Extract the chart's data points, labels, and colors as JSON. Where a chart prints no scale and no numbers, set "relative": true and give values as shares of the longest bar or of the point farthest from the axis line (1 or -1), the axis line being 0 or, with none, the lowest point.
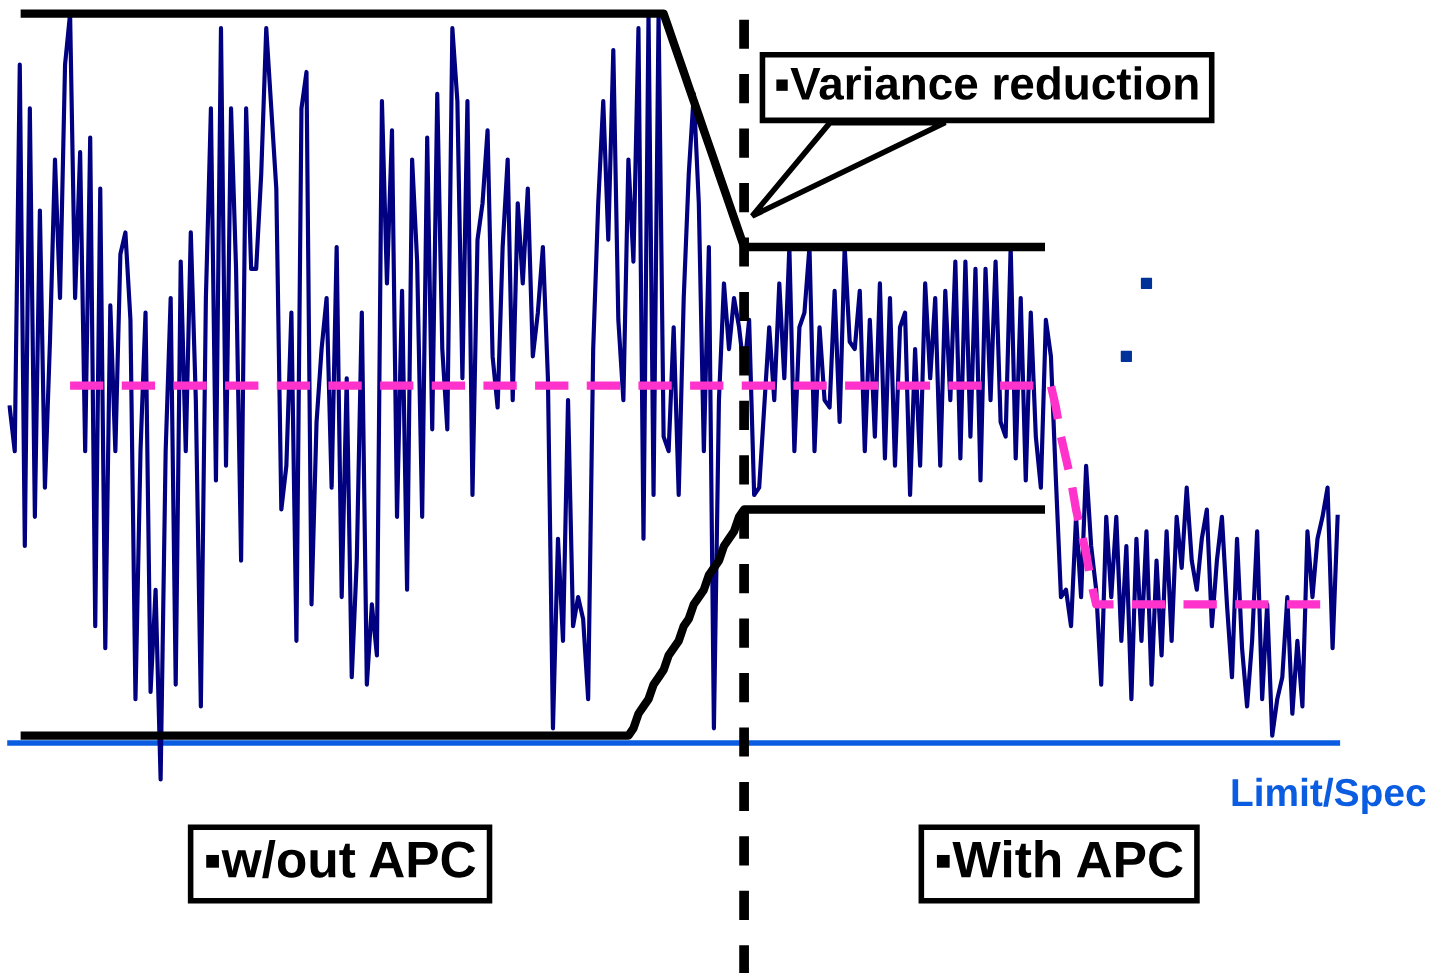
{
  "chart_data": {
    "type": "line",
    "relative": true,
    "legend": false,
    "marker": "none",
    "categories": [
      null,
      null,
      null,
      null,
      null,
      null,
      null,
      null,
      null,
      null,
      null,
      null,
      null,
      null,
      null,
      null,
      null,
      null,
      null,
      null,
      null,
      null,
      null,
      null,
      null,
      null,
      null,
      null,
      null,
      null,
      null,
      null,
      null,
      null,
      null,
      null,
      null,
      null,
      null,
      null,
      null,
      null,
      null,
      null,
      null,
      null,
      null,
      null,
      null,
      null,
      null,
      null,
      null,
      null,
      null,
      null,
      null,
      null,
      null,
      null,
      null,
      null,
      null,
      null,
      null,
      null,
      null,
      null,
      null,
      null,
      null,
      null,
      null,
      null,
      null,
      null,
      null,
      null,
      null,
      null,
      null,
      null,
      null,
      null,
      null,
      null,
      null,
      null,
      null,
      null,
      null,
      null,
      null,
      null,
      null,
      null,
      null,
      null,
      null,
      null,
      null,
      null,
      null,
      null,
      null,
      null,
      null,
      null,
      null,
      null,
      null,
      null,
      null,
      null,
      null,
      null,
      null,
      null,
      null,
      null,
      null,
      null,
      null,
      null,
      null,
      null,
      null,
      null,
      null,
      null,
      null,
      null,
      null,
      null,
      null,
      null,
      null,
      null,
      null,
      null,
      null,
      null,
      null,
      null,
      null,
      null,
      null,
      null,
      null,
      null,
      null,
      null,
      null,
      null,
      null,
      null,
      null,
      null,
      null,
      null,
      null,
      null,
      null,
      null,
      null,
      null,
      null,
      null,
      null,
      null,
      null,
      null,
      null,
      null,
      null,
      null,
      null,
      null,
      null,
      null,
      null,
      null,
      null,
      null,
      null,
      null,
      null,
      null,
      null,
      null,
      null,
      null,
      null,
      null,
      null,
      null,
      null,
      null,
      null,
      null,
      null,
      null,
      null,
      null,
      null,
      null,
      null,
      null,
      null,
      null,
      null,
      null,
      null,
      null,
      null,
      null,
      null,
      null,
      null,
      null,
      null,
      null,
      null,
      null,
      null,
      null,
      null,
      null,
      null,
      null,
      null,
      null,
      null,
      null,
      null,
      null,
      null,
      null,
      null,
      null,
      null,
      null,
      null,
      null,
      null,
      null,
      null,
      null,
      null,
      null,
      null,
      null,
      null,
      null,
      null,
      null,
      null,
      null,
      null,
      null,
      null,
      null,
      null,
      null,
      null
    ],
    "series": [
      {
        "color": "#000080",
        "values": [
          0.46,
          0.4,
          0.93,
          0.27,
          0.87,
          0.31,
          0.73,
          0.35,
          0.55,
          0.8,
          0.61,
          0.93,
          1.0,
          0.61,
          0.81,
          0.4,
          0.83,
          0.16,
          0.76,
          0.13,
          0.6,
          0.4,
          0.67,
          0.7,
          0.58,
          0.06,
          0.4,
          0.59,
          0.07,
          0.21,
          -0.05,
          0.4,
          0.61,
          0.08,
          0.66,
          0.4,
          0.7,
          0.47,
          0.05,
          0.61,
          0.87,
          0.36,
          0.98,
          0.38,
          0.87,
          0.65,
          0.25,
          0.87,
          0.65,
          0.65,
          0.78,
          0.98,
          0.87,
          0.76,
          0.32,
          0.38,
          0.59,
          0.14,
          0.87,
          0.92,
          0.19,
          0.44,
          0.54,
          0.61,
          0.35,
          0.68,
          0.2,
          0.5,
          0.09,
          0.25,
          0.59,
          0.08,
          0.19,
          0.12,
          0.88,
          0.63,
          0.84,
          0.31,
          0.62,
          0.21,
          0.8,
          0.66,
          0.31,
          0.83,
          0.43,
          0.89,
          0.54,
          0.43,
          0.98,
          0.88,
          0.5,
          0.88,
          0.34,
          0.69,
          0.74,
          0.84,
          0.53,
          0.46,
          0.68,
          0.8,
          0.47,
          0.74,
          0.63,
          0.76,
          0.53,
          0.59,
          0.68,
          0.5,
          0.02,
          0.28,
          0.14,
          0.47,
          0.16,
          0.2,
          0.17,
          0.06,
          0.54,
          0.74,
          0.88,
          0.69,
          0.95,
          0.58,
          0.47,
          0.8,
          0.66,
          0.98,
          0.28,
          1.0,
          0.34,
          1.0,
          0.42,
          0.4,
          0.57,
          0.34,
          0.61,
          0.78,
          0.89,
          0.74,
          0.4,
          0.68,
          0.02,
          0.47,
          0.63,
          0.54,
          0.61,
          0.57,
          0.51,
          0.58,
          0.34,
          0.35,
          0.46,
          0.57,
          0.47,
          0.63,
          0.5,
          0.68,
          0.4,
          0.57,
          0.59,
          0.68,
          0.4,
          0.57,
          0.47,
          0.46,
          0.62,
          0.44,
          0.68,
          0.55,
          0.54,
          0.62,
          0.4,
          0.58,
          0.42,
          0.63,
          0.39,
          0.61,
          0.38,
          0.57,
          0.59,
          0.34,
          0.54,
          0.38,
          0.63,
          0.5,
          0.61,
          0.38,
          0.62,
          0.47,
          0.66,
          0.39,
          0.66,
          0.42,
          0.65,
          0.36,
          0.65,
          0.47,
          0.66,
          0.44,
          0.42,
          0.68,
          0.39,
          0.61,
          0.36,
          0.59,
          0.42,
          0.35,
          0.58,
          0.53,
          0.36,
          0.2,
          0.21,
          0.16,
          0.31,
          0.2,
          0.38,
          0.27,
          0.21,
          0.08,
          0.31,
          0.2,
          0.31,
          0.14,
          0.27,
          0.06,
          0.28,
          0.14,
          0.29,
          0.08,
          0.25,
          0.12,
          0.29,
          0.14,
          0.31,
          0.24,
          0.35,
          0.25,
          0.21,
          0.28,
          0.32,
          0.16,
          0.25,
          0.31,
          0.19,
          0.09,
          0.28,
          0.13,
          0.05,
          0.14,
          0.29,
          0.06,
          0.19,
          0.01,
          0.06,
          0.09,
          0.2,
          0.04,
          0.14,
          0.05,
          0.29,
          0.2,
          0.28,
          0.31,
          0.35,
          0.13,
          0.31
        ]
      },
      {
        "color": "#ff33cc",
        "line_style": "dashed",
        "values": [
          null,
          null,
          null,
          null,
          null,
          null,
          null,
          null,
          null,
          null,
          null,
          null,
          0.49,
          0.49,
          0.49,
          0.49,
          0.49,
          0.49,
          0.49,
          0.49,
          0.49,
          0.49,
          0.49,
          0.49,
          0.49,
          0.49,
          0.49,
          0.49,
          0.49,
          0.49,
          0.49,
          0.49,
          0.49,
          0.49,
          0.49,
          0.49,
          0.49,
          0.49,
          0.49,
          0.49,
          0.49,
          0.49,
          0.49,
          0.49,
          0.49,
          0.49,
          0.49,
          0.49,
          0.49,
          0.49,
          0.49,
          0.49,
          0.49,
          0.49,
          0.49,
          0.49,
          0.49,
          0.49,
          0.49,
          0.49,
          0.49,
          0.49,
          0.49,
          0.49,
          0.49,
          0.49,
          0.49,
          0.49,
          0.49,
          0.49,
          0.49,
          0.49,
          0.49,
          0.49,
          0.49,
          0.49,
          0.49,
          0.49,
          0.49,
          0.49,
          0.49,
          0.49,
          0.49,
          0.49,
          0.49,
          0.49,
          0.49,
          0.49,
          0.49,
          0.49,
          0.49,
          0.49,
          0.49,
          0.49,
          0.49,
          0.49,
          0.49,
          0.49,
          0.49,
          0.49,
          0.49,
          0.49,
          0.49,
          0.49,
          0.49,
          0.49,
          0.49,
          0.49,
          0.49,
          0.49,
          0.49,
          0.49,
          0.49,
          0.49,
          0.49,
          0.49,
          0.49,
          0.49,
          0.49,
          0.49,
          0.49,
          0.49,
          0.49,
          0.49,
          0.49,
          0.49,
          0.49,
          0.49,
          0.49,
          0.49,
          0.49,
          0.49,
          0.49,
          0.49,
          0.49,
          0.49,
          0.49,
          0.49,
          0.49,
          0.49,
          0.49,
          0.49,
          0.49,
          0.49,
          0.49,
          0.49,
          0.49,
          0.49,
          0.49,
          0.49,
          0.49,
          0.49,
          0.49,
          0.49,
          0.49,
          0.49,
          0.49,
          0.49,
          0.49,
          0.49,
          0.49,
          0.49,
          0.49,
          0.49,
          0.49,
          0.49,
          0.49,
          0.49,
          0.49,
          0.49,
          0.49,
          0.49,
          0.49,
          0.49,
          0.49,
          0.49,
          0.49,
          0.49,
          0.49,
          0.49,
          0.49,
          0.49,
          0.49,
          0.49,
          0.49,
          0.49,
          0.49,
          0.49,
          0.49,
          0.49,
          0.49,
          0.49,
          0.49,
          0.49,
          0.49,
          0.49,
          0.49,
          0.49,
          0.49,
          0.49,
          0.49,
          0.49,
          0.49,
          0.49,
          0.49,
          0.49,
          0.49,
          0.49,
          0.46,
          0.42,
          0.39,
          0.36,
          0.32,
          0.29,
          0.26,
          0.22,
          0.19,
          0.19,
          0.19,
          0.19,
          0.19,
          0.19,
          0.19,
          0.19,
          0.19,
          0.19,
          0.19,
          0.19,
          0.19,
          0.19,
          0.19,
          0.19,
          0.19,
          0.19,
          0.19,
          0.19,
          0.19,
          0.19,
          0.19,
          0.19,
          0.19,
          0.19,
          0.19,
          0.19,
          0.19,
          0.19,
          0.19,
          0.19,
          0.19,
          0.19,
          0.19,
          0.19,
          0.19,
          0.19,
          0.19,
          0.19,
          0.19,
          0.19,
          0.19,
          0.19,
          0.19,
          0.19,
          0.19,
          null,
          null
        ]
      },
      {
        "color": "#000000",
        "values": [
          null,
          null,
          null,
          1,
          1,
          1,
          1,
          1,
          1,
          1,
          1,
          1,
          1,
          1,
          1,
          1,
          1,
          1,
          1,
          1,
          1,
          1,
          1,
          1,
          1,
          1,
          1,
          1,
          1,
          1,
          1,
          1,
          1,
          1,
          1,
          1,
          1,
          1,
          1,
          1,
          1,
          1,
          1,
          1,
          1,
          1,
          1,
          1,
          1,
          1,
          1,
          1,
          1,
          1,
          1,
          1,
          1,
          1,
          1,
          1,
          1,
          1,
          1,
          1,
          1,
          1,
          1,
          1,
          1,
          1,
          1,
          1,
          1,
          1,
          1,
          1,
          1,
          1,
          1,
          1,
          1,
          1,
          1,
          1,
          1,
          1,
          1,
          1,
          1,
          1,
          1,
          1,
          1,
          1,
          1,
          1,
          1,
          1,
          1,
          1,
          1,
          1,
          1,
          1,
          1,
          1,
          1,
          1,
          1,
          1,
          1,
          1,
          1,
          1,
          1,
          1,
          1,
          1,
          1,
          1,
          1,
          1,
          1,
          1,
          1,
          1,
          1,
          1,
          1,
          1,
          1,
          0.98,
          0.96,
          0.94,
          0.92,
          0.9,
          0.88,
          0.86,
          0.84,
          0.82,
          0.8,
          0.78,
          0.76,
          0.74,
          0.72,
          0.7,
          0.68,
          0.68,
          0.68,
          0.68,
          0.68,
          0.68,
          0.68,
          0.68,
          0.68,
          0.68,
          0.68,
          0.68,
          0.68,
          0.68,
          0.68,
          0.68,
          0.68,
          0.68,
          0.68,
          0.68,
          0.68,
          0.68,
          0.68,
          0.68,
          0.68,
          0.68,
          0.68,
          0.68,
          0.68,
          0.68,
          0.68,
          0.68,
          0.68,
          0.68,
          0.68,
          0.68,
          0.68,
          0.68,
          0.68,
          0.68,
          0.68,
          0.68,
          0.68,
          0.68,
          0.68,
          0.68,
          0.68,
          0.68,
          0.68,
          0.68,
          0.68,
          0.68,
          0.68,
          0.68,
          0.68,
          0.68,
          0.68,
          0.68,
          0.68,
          0.68,
          null,
          null,
          null,
          null,
          null,
          null,
          null,
          null,
          null,
          null,
          null,
          null,
          null,
          null,
          null,
          null,
          null,
          null,
          null,
          null,
          null,
          null,
          null,
          null,
          null,
          null,
          null,
          null,
          null,
          null,
          null,
          null,
          null,
          null,
          null,
          null,
          null,
          null,
          null,
          null,
          null,
          null,
          null,
          null,
          null,
          null,
          null,
          null,
          null,
          null,
          null,
          null,
          null,
          null,
          null,
          null,
          null,
          null,
          null
        ]
      },
      {
        "color": "#000000",
        "values": [
          null,
          null,
          null,
          0.01,
          0.01,
          0.01,
          0.01,
          0.01,
          0.01,
          0.01,
          0.01,
          0.01,
          0.01,
          0.01,
          0.01,
          0.01,
          0.01,
          0.01,
          0.01,
          0.01,
          0.01,
          0.01,
          0.01,
          0.01,
          0.01,
          0.01,
          0.01,
          0.01,
          0.01,
          0.01,
          0.01,
          0.01,
          0.01,
          0.01,
          0.01,
          0.01,
          0.01,
          0.01,
          0.01,
          0.01,
          0.01,
          0.01,
          0.01,
          0.01,
          0.01,
          0.01,
          0.01,
          0.01,
          0.01,
          0.01,
          0.01,
          0.01,
          0.01,
          0.01,
          0.01,
          0.01,
          0.01,
          0.01,
          0.01,
          0.01,
          0.01,
          0.01,
          0.01,
          0.01,
          0.01,
          0.01,
          0.01,
          0.01,
          0.01,
          0.01,
          0.01,
          0.01,
          0.01,
          0.01,
          0.01,
          0.01,
          0.01,
          0.01,
          0.01,
          0.01,
          0.01,
          0.01,
          0.01,
          0.01,
          0.01,
          0.01,
          0.01,
          0.01,
          0.01,
          0.01,
          0.01,
          0.01,
          0.01,
          0.01,
          0.01,
          0.01,
          0.01,
          0.01,
          0.01,
          0.01,
          0.01,
          0.01,
          0.01,
          0.01,
          0.01,
          0.01,
          0.01,
          0.01,
          0.01,
          0.01,
          0.01,
          0.01,
          0.01,
          0.01,
          0.01,
          0.01,
          0.01,
          0.01,
          0.01,
          0.01,
          0.01,
          0.01,
          0.01,
          0.01,
          0.02,
          0.04,
          0.05,
          0.06,
          0.08,
          0.09,
          0.1,
          0.12,
          0.13,
          0.14,
          0.16,
          0.17,
          0.19,
          0.2,
          0.21,
          0.23,
          0.24,
          0.25,
          0.27,
          0.28,
          0.29,
          0.31,
          0.32,
          0.32,
          0.32,
          0.32,
          0.32,
          0.32,
          0.32,
          0.32,
          0.32,
          0.32,
          0.32,
          0.32,
          0.32,
          0.32,
          0.32,
          0.32,
          0.32,
          0.32,
          0.32,
          0.32,
          0.32,
          0.32,
          0.32,
          0.32,
          0.32,
          0.32,
          0.32,
          0.32,
          0.32,
          0.32,
          0.32,
          0.32,
          0.32,
          0.32,
          0.32,
          0.32,
          0.32,
          0.32,
          0.32,
          0.32,
          0.32,
          0.32,
          0.32,
          0.32,
          0.32,
          0.32,
          0.32,
          0.32,
          0.32,
          0.32,
          0.32,
          0.32,
          0.32,
          0.32,
          0.32,
          0.32,
          0.32,
          0.32,
          0.32,
          0.32,
          null,
          null,
          null,
          null,
          null,
          null,
          null,
          null,
          null,
          null,
          null,
          null,
          null,
          null,
          null,
          null,
          null,
          null,
          null,
          null,
          null,
          null,
          null,
          null,
          null,
          null,
          null,
          null,
          null,
          null,
          null,
          null,
          null,
          null,
          null,
          null,
          null,
          null,
          null,
          null,
          null,
          null,
          null,
          null,
          null,
          null,
          null,
          null,
          null,
          null,
          null,
          null,
          null,
          null,
          null,
          null,
          null,
          null,
          null
        ]
      }
    ],
    "ref_lines": [
      {
        "axis": "y",
        "value": 0,
        "label": "Limit/Spec",
        "color": "#0a5ce0"
      }
    ],
    "annotations": [
      "▪Variance reduction",
      "▪w/out APC",
      "▪With APC"
    ]
  }
}
